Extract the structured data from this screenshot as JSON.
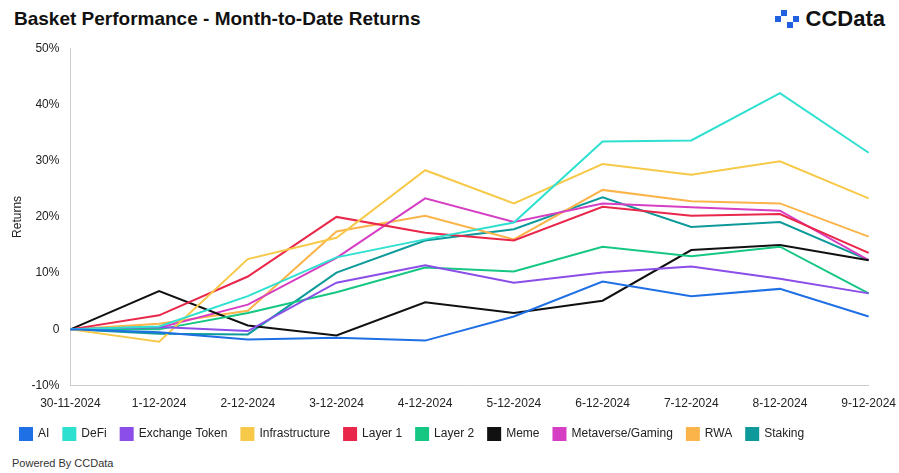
{
  "chart_data": {
    "type": "line",
    "title": "Basket Performance - Month-to-Date Returns",
    "logo": "CCData",
    "footer": "Powered By CCData",
    "y_label": "Returns",
    "categories": [
      "30-11-2024",
      "1-12-2024",
      "2-12-2024",
      "3-12-2024",
      "4-12-2024",
      "5-12-2024",
      "6-12-2024",
      "7-12-2024",
      "8-12-2024",
      "9-12-2024"
    ],
    "series": [
      {
        "name": "AI",
        "color": "#1f6fe5",
        "values": [
          0,
          -0.5,
          -1.8,
          -1.5,
          -2,
          2.3,
          8.5,
          5.9,
          7.2,
          2.3
        ]
      },
      {
        "name": "DeFi",
        "color": "#2de0cf",
        "values": [
          0,
          0.5,
          5.9,
          12.8,
          16,
          19,
          33.4,
          33.6,
          42,
          31.4
        ]
      },
      {
        "name": "Exchange Token",
        "color": "#8b4ee8",
        "values": [
          0,
          0.4,
          -0.3,
          8.3,
          11.4,
          8.3,
          10.1,
          11.2,
          9,
          6.4
        ]
      },
      {
        "name": "Infrastructure",
        "color": "#f7c948",
        "values": [
          0,
          -2.2,
          12.5,
          16.3,
          28.3,
          22.4,
          29.4,
          27.5,
          29.9,
          23.3
        ]
      },
      {
        "name": "Layer 1",
        "color": "#e8274b",
        "values": [
          0,
          2.5,
          9.4,
          20,
          17.2,
          15.8,
          21.8,
          20.2,
          20.5,
          13.6
        ]
      },
      {
        "name": "Layer 2",
        "color": "#16c784",
        "values": [
          0,
          0,
          2.9,
          6.6,
          11,
          10.3,
          14.7,
          13,
          14.7,
          6.4
        ]
      },
      {
        "name": "Meme",
        "color": "#111111",
        "values": [
          0,
          6.8,
          0.7,
          -1.1,
          4.8,
          2.9,
          5.1,
          14.1,
          15,
          12.3
        ]
      },
      {
        "name": "Metaverse/Gaming",
        "color": "#d63fc4",
        "values": [
          0,
          0.3,
          4.4,
          12.7,
          23.3,
          19.1,
          22.4,
          21.7,
          21.1,
          12.3
        ]
      },
      {
        "name": "RWA",
        "color": "#fbb44a",
        "values": [
          0,
          1,
          3.3,
          17.4,
          20.2,
          16,
          24.8,
          22.8,
          22.4,
          16.5
        ]
      },
      {
        "name": "Staking",
        "color": "#0e9a9a",
        "values": [
          0,
          -0.8,
          -0.9,
          10.1,
          15.8,
          17.8,
          23.5,
          18.2,
          19.1,
          12.3
        ]
      }
    ],
    "ylim": [
      -10,
      50
    ],
    "yticks": [
      {
        "value": -10,
        "label": "-10%"
      },
      0,
      {
        "value": 10,
        "label": "10%"
      },
      {
        "value": 20,
        "label": "20%"
      },
      {
        "value": 30,
        "label": "30%"
      },
      {
        "value": 40,
        "label": "40%"
      },
      {
        "value": 50,
        "label": "50%"
      }
    ],
    "grid": false,
    "legend": "bottom"
  }
}
